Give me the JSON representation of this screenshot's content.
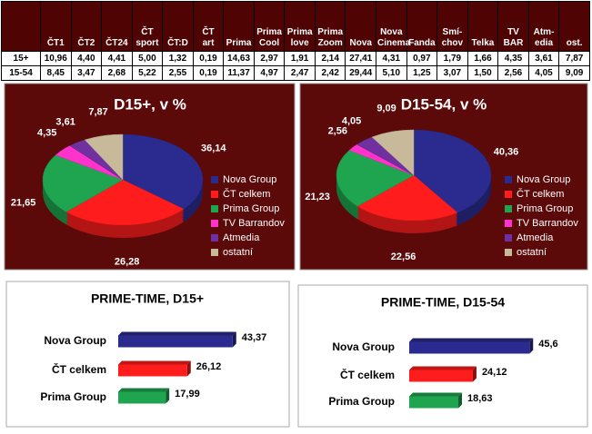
{
  "table": {
    "header": [
      "ČT1",
      "ČT2",
      "ČT24",
      "ČT\nsport",
      "ČT:D",
      "ČT\nart",
      "Prima",
      "Prima\nCool",
      "Prima\nlove",
      "Prima\nZoom",
      "Nova",
      "Nova\nCinema",
      "Fanda",
      "Smí-\nchov",
      "Telka",
      "TV\nBAR",
      "Atm-\nedia",
      "ost."
    ],
    "rows": [
      [
        "15+",
        "10,96",
        "4,40",
        "4,41",
        "5,00",
        "1,32",
        "0,19",
        "14,63",
        "2,97",
        "1,91",
        "2,14",
        "27,41",
        "4,31",
        "0,97",
        "1,79",
        "1,66",
        "4,35",
        "3,61",
        "7,87"
      ],
      [
        "15-54",
        "8,45",
        "3,47",
        "2,68",
        "5,22",
        "2,55",
        "0,19",
        "11,37",
        "4,97",
        "2,47",
        "2,42",
        "29,44",
        "5,10",
        "1,25",
        "3,07",
        "1,50",
        "2,56",
        "4,05",
        "9,09"
      ]
    ]
  },
  "chart_data": [
    {
      "type": "pie",
      "title": "D15+, v %",
      "categories": [
        "Nova Group",
        "ČT celkem",
        "Prima Group",
        "TV Barrandov",
        "Atmedia",
        "ostatní"
      ],
      "values": [
        36.14,
        26.28,
        21.65,
        4.35,
        3.61,
        7.87
      ],
      "value_labels": [
        "36,14",
        "26,28",
        "21,65",
        "4,35",
        "3,61",
        "7,87"
      ],
      "colors": [
        "#2b2b8f",
        "#ff1c1c",
        "#1fa550",
        "#ff33cc",
        "#7030a0",
        "#c9b99b"
      ],
      "legend": "right"
    },
    {
      "type": "pie",
      "title": "D15-54, v %",
      "categories": [
        "Nova Group",
        "ČT celkem",
        "Prima Group",
        "TV Barrandov",
        "Atmedia",
        "ostatní"
      ],
      "values": [
        40.36,
        22.56,
        21.23,
        2.56,
        4.05,
        9.09
      ],
      "value_labels": [
        "40,36",
        "22,56",
        "21,23",
        "2,56",
        "4,05",
        "9,09"
      ],
      "colors": [
        "#2b2b8f",
        "#ff1c1c",
        "#1fa550",
        "#ff33cc",
        "#7030a0",
        "#c9b99b"
      ],
      "legend": "right"
    },
    {
      "type": "bar",
      "title": "PRIME-TIME, D15+",
      "categories": [
        "Nova Group",
        "ČT celkem",
        "Prima Group"
      ],
      "values": [
        43.37,
        26.12,
        17.99
      ],
      "value_labels": [
        "43,37",
        "26,12",
        "17,99"
      ],
      "colors": [
        "#2b2b8f",
        "#ff1c1c",
        "#1fa550"
      ]
    },
    {
      "type": "bar",
      "title": "PRIME-TIME, D15-54",
      "categories": [
        "Nova Group",
        "ČT celkem",
        "Prima Group"
      ],
      "values": [
        45.6,
        24.12,
        18.63
      ],
      "value_labels": [
        "45,6",
        "24,12",
        "18,63"
      ],
      "colors": [
        "#2b2b8f",
        "#ff1c1c",
        "#1fa550"
      ]
    }
  ]
}
